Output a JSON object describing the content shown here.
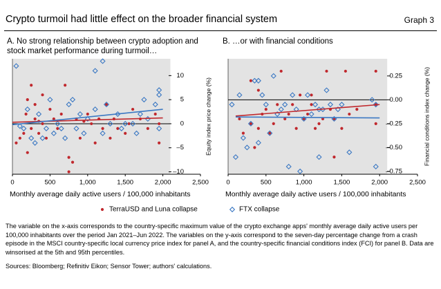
{
  "header": {
    "title": "Crypto turmoil had little effect on the broader financial system",
    "graph_label": "Graph 3"
  },
  "legend": [
    {
      "name": "TerraUSD and Luna collapse",
      "color": "#c0282d",
      "marker": "dot"
    },
    {
      "name": "FTX collapse",
      "color": "#3b78c3",
      "marker": "diamond"
    }
  ],
  "chart_data": [
    {
      "type": "scatter",
      "title": "A. No strong relationship between crypto adoption and stock market performance during turmoil…",
      "xlabel": "Monthly average daily active users / 100,000 inhabitants",
      "ylabel": "Equity index price change (%)",
      "background": "#e3e3e3",
      "xlim": [
        0,
        2500
      ],
      "xticks": [
        0,
        500,
        {
          "value": 1000,
          "label": "1,000"
        },
        {
          "value": 1500,
          "label": "1,500"
        },
        {
          "value": 2000,
          "label": "2,000"
        },
        {
          "value": 2500,
          "label": "2,500"
        }
      ],
      "ylim": [
        -10.5,
        13.5
      ],
      "yticks": [
        {
          "value": -10,
          "label": "–10"
        },
        {
          "value": -5,
          "label": "–5"
        },
        0,
        5,
        10
      ],
      "series": [
        {
          "color": "#c0282d",
          "marker": "dot",
          "x": [
            50,
            100,
            150,
            180,
            200,
            250,
            300,
            300,
            350,
            350,
            400,
            400,
            450,
            500,
            550,
            600,
            650,
            700,
            750,
            750,
            800,
            850,
            900,
            950,
            1000,
            1050,
            1100,
            1150,
            1200,
            1250,
            1300,
            1350,
            1400,
            1500,
            1550,
            1600,
            1700,
            1800,
            1900,
            1950,
            1950,
            200,
            250
          ],
          "values": [
            -4,
            -3,
            -2,
            2,
            5,
            -1,
            1,
            4,
            0.5,
            -2,
            0,
            6,
            -3,
            3,
            1,
            -1,
            2,
            8,
            -7,
            -10,
            -8,
            1,
            -3,
            0.5,
            2,
            0,
            -4,
            1,
            -1,
            4,
            -3,
            1,
            -1,
            -2,
            0,
            3,
            1,
            -1,
            2,
            -4,
            0,
            -6,
            8
          ],
          "trend": {
            "x": [
              0,
              2000
            ],
            "values": [
              0.3,
              1.2
            ]
          }
        },
        {
          "color": "#3b78c3",
          "marker": "diamond",
          "x": [
            50,
            100,
            150,
            200,
            250,
            300,
            350,
            400,
            450,
            500,
            550,
            600,
            650,
            700,
            750,
            800,
            850,
            900,
            950,
            1000,
            1100,
            1200,
            1250,
            1300,
            1400,
            1450,
            1500,
            1600,
            1650,
            1700,
            1750,
            1800,
            1900,
            1950,
            1950,
            1950,
            1200,
            1100
          ],
          "values": [
            12,
            -0.5,
            -1,
            3,
            -3,
            -4,
            2,
            -3,
            -1,
            5,
            -2,
            0,
            -1,
            -3,
            4,
            5,
            -1,
            2,
            -2,
            1,
            3,
            -2,
            4,
            0,
            2,
            -1,
            0,
            0,
            -2,
            2,
            5,
            1,
            4,
            6,
            7,
            -1,
            13,
            11
          ],
          "trend": {
            "x": [
              0,
              2000
            ],
            "values": [
              -0.2,
              3
            ]
          }
        }
      ]
    },
    {
      "type": "scatter",
      "title": "B. …or with financial conditions",
      "xlabel": "Monthly average daily active users / 100,000 inhabitants",
      "ylabel": "Financial conditions index change (%)",
      "background": "#e3e3e3",
      "xlim": [
        0,
        2500
      ],
      "xticks": [
        0,
        500,
        {
          "value": 1000,
          "label": "1,000"
        },
        {
          "value": 1500,
          "label": "1,500"
        },
        {
          "value": 2000,
          "label": "2,000"
        },
        {
          "value": 2500,
          "label": "2,500"
        }
      ],
      "ylim": [
        -0.78,
        0.43
      ],
      "yticks": [
        {
          "value": -0.75,
          "label": "–0.75"
        },
        {
          "value": -0.5,
          "label": "–0.50"
        },
        {
          "value": -0.25,
          "label": "–0.25"
        },
        {
          "value": 0,
          "label": "0.00"
        },
        0.25
      ],
      "series": [
        {
          "color": "#c0282d",
          "marker": "dot",
          "x": [
            150,
            200,
            300,
            300,
            350,
            400,
            400,
            450,
            500,
            550,
            600,
            650,
            700,
            750,
            800,
            850,
            900,
            950,
            1000,
            1050,
            1100,
            1150,
            1200,
            1250,
            1300,
            1350,
            1400,
            1500,
            1550,
            1600,
            1700,
            1950,
            1950,
            1950,
            1400,
            1100
          ],
          "values": [
            -0.2,
            -0.35,
            -0.25,
            0.2,
            -0.5,
            -0.3,
            0.1,
            -0.15,
            -0.1,
            -0.35,
            -0.25,
            -0.05,
            0.3,
            -0.2,
            -0.15,
            -0.05,
            -0.3,
            0.05,
            -0.2,
            -0.15,
            -0.05,
            -0.3,
            -0.25,
            -0.2,
            0.3,
            -0.1,
            -0.2,
            -0.3,
            0.3,
            -0.15,
            -0.1,
            0.3,
            -0.25,
            -0.05,
            -0.6,
            0.05
          ],
          "trend": {
            "x": [
              100,
              2000
            ],
            "values": [
              -0.17,
              -0.05
            ]
          }
        },
        {
          "color": "#3b78c3",
          "marker": "diamond",
          "x": [
            50,
            100,
            150,
            200,
            250,
            300,
            350,
            400,
            400,
            450,
            500,
            550,
            600,
            650,
            700,
            750,
            800,
            850,
            900,
            950,
            1000,
            1050,
            1100,
            1150,
            1200,
            1250,
            1300,
            1350,
            1400,
            1450,
            1500,
            1600,
            1900,
            1950,
            1950,
            1200
          ],
          "values": [
            -0.05,
            -0.6,
            0.05,
            -0.4,
            -0.5,
            -0.25,
            0.2,
            0.2,
            -0.45,
            0.05,
            -0.05,
            -0.35,
            0.25,
            -0.15,
            -0.1,
            -0.05,
            -0.7,
            0.05,
            -0.1,
            -0.75,
            -0.2,
            0.05,
            -0.15,
            -0.05,
            -0.1,
            -0.1,
            0.1,
            -0.05,
            -0.2,
            -0.1,
            -0.05,
            -0.55,
            0,
            -0.05,
            -0.7,
            -0.6
          ],
          "trend": {
            "x": [
              100,
              2000
            ],
            "values": [
              -0.18,
              -0.19
            ]
          }
        }
      ]
    }
  ],
  "notes": "The variable on the x-axis corresponds to the country-specific maximum value of the crypto exchange apps' monthly average daily active users per 100,000 inhabitants over the period Jan 2021–Jun 2022. The variables on the y-axis correspond to the seven-day percentage change from a crash episode in the MSCI country-specific local currency price index for panel A, and the country-specific financial conditions index (FCI) for panel B. Data are winsorised at the 5th and 95th percentiles.",
  "sources": "Sources: Bloomberg; Refinitiv Eikon; Sensor Tower; authors' calculations."
}
